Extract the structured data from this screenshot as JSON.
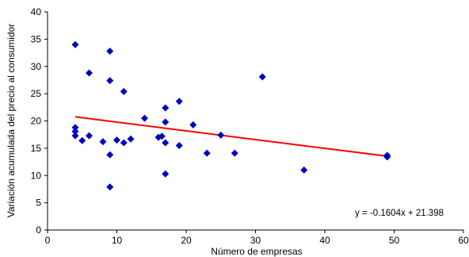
{
  "chart_data": {
    "type": "scatter",
    "title": "",
    "xlabel": "Número de empresas",
    "ylabel": "Variación acumulada del precio al consumidor",
    "xlim": [
      0,
      60
    ],
    "ylim": [
      0,
      40
    ],
    "xticks": [
      "0",
      "10",
      "20",
      "30",
      "40",
      "50",
      "60"
    ],
    "yticks": [
      "0",
      "5",
      "10",
      "15",
      "20",
      "25",
      "30",
      "35",
      "40"
    ],
    "grid": false,
    "legend": "none",
    "series": [
      {
        "marker": "diamond",
        "color": "#0000c0",
        "points": [
          {
            "x": 4,
            "y": 34.0
          },
          {
            "x": 9,
            "y": 32.8
          },
          {
            "x": 6,
            "y": 28.8
          },
          {
            "x": 9,
            "y": 27.4
          },
          {
            "x": 31,
            "y": 28.1
          },
          {
            "x": 11,
            "y": 25.4
          },
          {
            "x": 19,
            "y": 23.6
          },
          {
            "x": 17,
            "y": 22.4
          },
          {
            "x": 14,
            "y": 20.5
          },
          {
            "x": 17,
            "y": 19.8
          },
          {
            "x": 21,
            "y": 19.3
          },
          {
            "x": 4,
            "y": 18.8
          },
          {
            "x": 4,
            "y": 18.1
          },
          {
            "x": 4,
            "y": 17.3
          },
          {
            "x": 6,
            "y": 17.3
          },
          {
            "x": 5,
            "y": 16.4
          },
          {
            "x": 8,
            "y": 16.2
          },
          {
            "x": 10,
            "y": 16.5
          },
          {
            "x": 11,
            "y": 16.0
          },
          {
            "x": 12,
            "y": 16.7
          },
          {
            "x": 16,
            "y": 17.0
          },
          {
            "x": 16.5,
            "y": 17.2
          },
          {
            "x": 17,
            "y": 16.0
          },
          {
            "x": 19,
            "y": 15.5
          },
          {
            "x": 25,
            "y": 17.4
          },
          {
            "x": 9,
            "y": 13.8
          },
          {
            "x": 23,
            "y": 14.1
          },
          {
            "x": 27,
            "y": 14.1
          },
          {
            "x": 17,
            "y": 10.3
          },
          {
            "x": 37,
            "y": 11.0
          },
          {
            "x": 9,
            "y": 7.9
          },
          {
            "x": 49,
            "y": 13.7
          },
          {
            "x": 49,
            "y": 13.4
          }
        ]
      }
    ],
    "trendline": {
      "slope": -0.1604,
      "intercept": 21.398,
      "x_range": [
        4,
        49
      ],
      "color": "#ff0000",
      "equation": "y = -0.1604x + 21.398"
    }
  }
}
